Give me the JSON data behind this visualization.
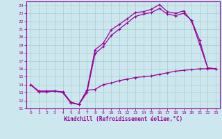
{
  "title": "",
  "xlabel": "Windchill (Refroidissement éolien,°C)",
  "ylabel": "",
  "xlim": [
    -0.5,
    23.5
  ],
  "ylim": [
    11,
    24.5
  ],
  "xticks": [
    0,
    1,
    2,
    3,
    4,
    5,
    6,
    7,
    8,
    9,
    10,
    11,
    12,
    13,
    14,
    15,
    16,
    17,
    18,
    19,
    20,
    21,
    22,
    23
  ],
  "yticks": [
    11,
    12,
    13,
    14,
    15,
    16,
    17,
    18,
    19,
    20,
    21,
    22,
    23,
    24
  ],
  "bg_color": "#cce8ee",
  "grid_color": "#aacccc",
  "line_color": "#990099",
  "line1_x": [
    0,
    1,
    2,
    3,
    4,
    5,
    6,
    7,
    8,
    9,
    10,
    11,
    12,
    13,
    14,
    15,
    16,
    17,
    18,
    19,
    20,
    21,
    22,
    23
  ],
  "line1_y": [
    14,
    13.1,
    13.1,
    13.2,
    13.0,
    11.7,
    11.5,
    13.3,
    18.4,
    19.2,
    20.9,
    21.6,
    22.3,
    23.1,
    23.2,
    23.5,
    24.1,
    23.2,
    23.0,
    23.3,
    22.0,
    19.1,
    16.1,
    16.0
  ],
  "line2_x": [
    0,
    1,
    2,
    3,
    4,
    5,
    6,
    7,
    8,
    9,
    10,
    11,
    12,
    13,
    14,
    15,
    16,
    17,
    18,
    19,
    20,
    21,
    22,
    23
  ],
  "line2_y": [
    14,
    13.1,
    13.1,
    13.2,
    13.0,
    11.7,
    11.5,
    13.0,
    17.9,
    18.8,
    20.2,
    21.0,
    21.8,
    22.6,
    22.9,
    23.1,
    23.6,
    22.9,
    22.7,
    23.0,
    22.1,
    19.6,
    16.1,
    16.0
  ],
  "line3_x": [
    0,
    1,
    2,
    3,
    4,
    5,
    6,
    7,
    8,
    9,
    10,
    11,
    12,
    13,
    14,
    15,
    16,
    17,
    18,
    19,
    20,
    21,
    22,
    23
  ],
  "line3_y": [
    14,
    13.2,
    13.2,
    13.2,
    13.1,
    11.8,
    11.5,
    13.3,
    13.4,
    14.0,
    14.2,
    14.5,
    14.7,
    14.9,
    15.0,
    15.1,
    15.3,
    15.5,
    15.7,
    15.8,
    15.9,
    16.0,
    16.0,
    16.0
  ]
}
